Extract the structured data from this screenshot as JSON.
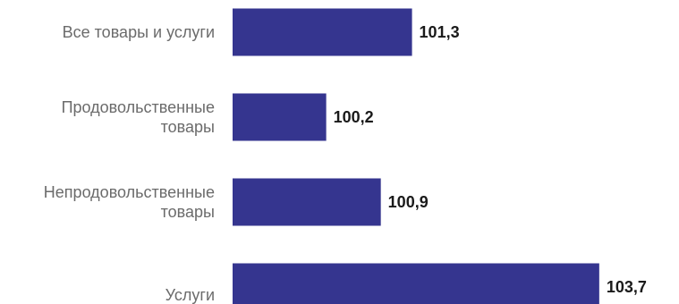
{
  "chart_data": {
    "type": "bar",
    "orientation": "horizontal",
    "categories": [
      [
        "Все товары и услуги"
      ],
      [
        "Продовольственные",
        "товары"
      ],
      [
        "Непродовольственные",
        "товары"
      ],
      [
        "Услуги"
      ]
    ],
    "values": [
      "101,3",
      "100,2",
      "100,9",
      "103,7"
    ],
    "xlim": [
      99,
      104
    ],
    "bar_color": "#35358f",
    "grid": false,
    "legend": "none"
  }
}
